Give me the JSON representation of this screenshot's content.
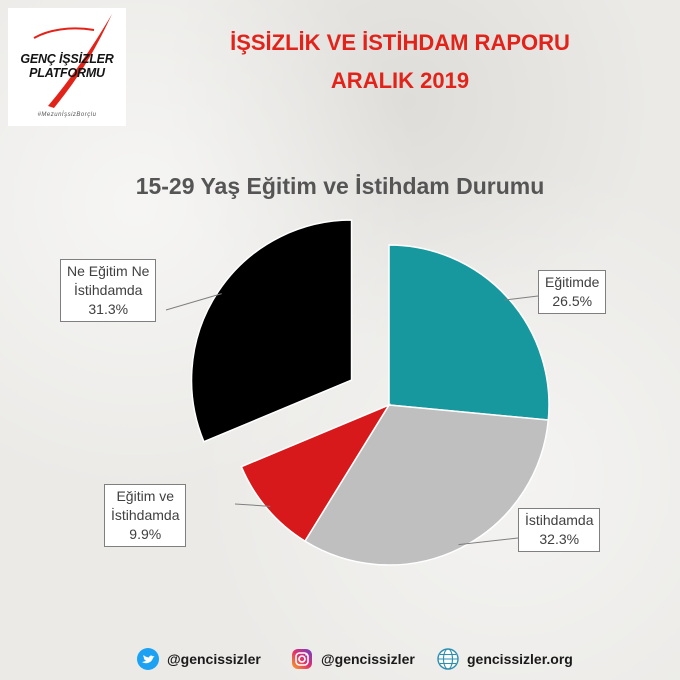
{
  "header": {
    "logo_line1": "GENÇ İŞSİZLER",
    "logo_line2": "PLATFORMU",
    "logo_tag": "#MezunİşsizBorçlu",
    "title_line1": "İŞSİZLİK VE İSTİHDAM RAPORU",
    "title_line2": "ARALIK 2019"
  },
  "colors": {
    "title_red": "#e2231a",
    "egitimde": "#17989e",
    "istihdamda": "#bfbfbf",
    "egitim_ve_istihdam": "#d7191c",
    "ne_egitim_ne_istihdam": "#000000"
  },
  "chart_data": {
    "type": "pie",
    "title": "15-29 Yaş Eğitim ve İstihdam Durumu",
    "slices": [
      {
        "label_lines": [
          "Eğitimde"
        ],
        "value": 26.5,
        "value_label": "26.5%",
        "color": "#17989e"
      },
      {
        "label_lines": [
          "İstihdamda"
        ],
        "value": 32.3,
        "value_label": "32.3%",
        "color": "#bfbfbf"
      },
      {
        "label_lines": [
          "Eğitim ve",
          "İstihdamda"
        ],
        "value": 9.9,
        "value_label": "9.9%",
        "color": "#d7191c"
      },
      {
        "label_lines": [
          "Ne Eğitim Ne",
          "İstihdamda"
        ],
        "value": 31.3,
        "value_label": "31.3%",
        "color": "#000000",
        "exploded": true
      }
    ]
  },
  "footer": {
    "twitter_handle": "@gencissizler",
    "instagram_handle": "@gencissizler",
    "website": "gencissizler.org"
  }
}
